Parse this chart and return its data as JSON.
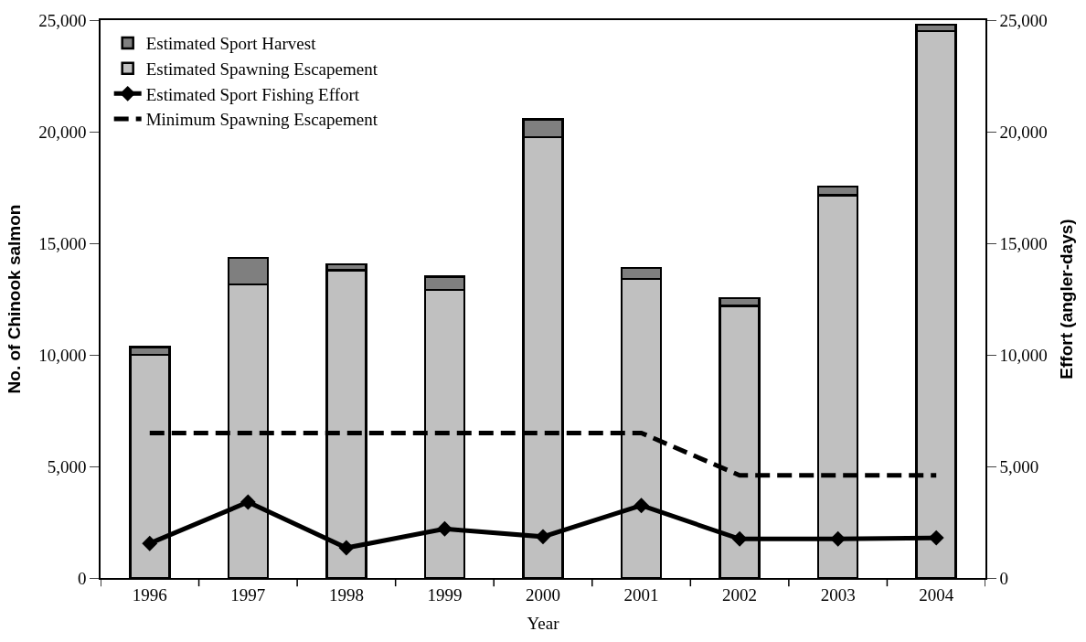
{
  "chart_data": {
    "type": "bar",
    "stacked": true,
    "xlabel": "Year",
    "ylabel": "No. of Chinook salmon",
    "y2label": "Effort (angler-days)",
    "categories": [
      "1996",
      "1997",
      "1998",
      "1999",
      "2000",
      "2001",
      "2002",
      "2003",
      "2004"
    ],
    "series": [
      {
        "name": "Estimated Spawning Escapement",
        "color": "#c0c0c0",
        "values": [
          10000,
          13150,
          13800,
          12900,
          19750,
          13400,
          12200,
          17150,
          24500
        ]
      },
      {
        "name": "Estimated Sport Harvest",
        "color": "#7f7f7f",
        "values": [
          350,
          1200,
          250,
          600,
          800,
          500,
          350,
          400,
          300
        ]
      },
      {
        "name": "Estimated Sport Fishing Effort",
        "type": "line",
        "axis": "y2",
        "color": "#000000",
        "marker": "diamond",
        "line_style": "solid",
        "values": [
          1550,
          3400,
          1350,
          2200,
          1850,
          3250,
          1750,
          1750,
          1800
        ]
      },
      {
        "name": "Minimum Spawning Escapement",
        "type": "line",
        "color": "#000000",
        "marker": "none",
        "line_style": "dashed",
        "values": [
          6500,
          6500,
          6500,
          6500,
          6500,
          6500,
          4600,
          4600,
          4600
        ]
      }
    ],
    "ylim": [
      0,
      25000
    ],
    "yticks": [
      {
        "value": 0,
        "label": "0"
      },
      {
        "value": 5000,
        "label": "5,000"
      },
      {
        "value": 10000,
        "label": "10,000"
      },
      {
        "value": 15000,
        "label": "15,000"
      },
      {
        "value": 20000,
        "label": "20,000"
      },
      {
        "value": 25000,
        "label": "25,000"
      }
    ],
    "y2lim": [
      0,
      25000
    ],
    "y2ticks": [
      {
        "value": 0,
        "label": "0"
      },
      {
        "value": 5000,
        "label": "5,000"
      },
      {
        "value": 10000,
        "label": "10,000"
      },
      {
        "value": 15000,
        "label": "15,000"
      },
      {
        "value": 20000,
        "label": "20,000"
      },
      {
        "value": 25000,
        "label": "25,000"
      }
    ],
    "legend": "top left"
  }
}
